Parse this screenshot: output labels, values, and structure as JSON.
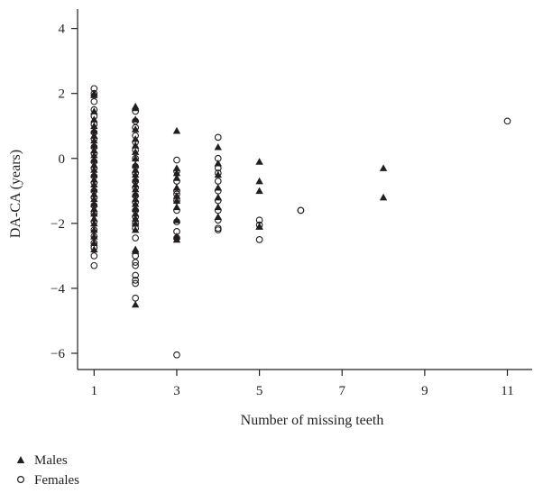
{
  "chart_data": {
    "type": "scatter",
    "title": "",
    "xlabel": "Number of missing teeth",
    "ylabel": "DA-CA (years)",
    "xlim": [
      0.6,
      11.6
    ],
    "ylim": [
      -6.5,
      4.6
    ],
    "xticks": [
      1,
      3,
      5,
      7,
      9,
      11
    ],
    "yticks": [
      -6,
      -4,
      -2,
      0,
      2,
      4
    ],
    "grid": false,
    "legend_position": "bottom-left",
    "series": [
      {
        "name": "Males",
        "marker": "filled-triangle",
        "points": [
          [
            1,
            2.0
          ],
          [
            1,
            1.95
          ],
          [
            1,
            1.45
          ],
          [
            1,
            1.2
          ],
          [
            1,
            1.0
          ],
          [
            1,
            0.85
          ],
          [
            1,
            0.7
          ],
          [
            1,
            0.55
          ],
          [
            1,
            0.4
          ],
          [
            1,
            0.25
          ],
          [
            1,
            0.1
          ],
          [
            1,
            -0.05
          ],
          [
            1,
            -0.2
          ],
          [
            1,
            -0.35
          ],
          [
            1,
            -0.5
          ],
          [
            1,
            -0.65
          ],
          [
            1,
            -0.8
          ],
          [
            1,
            -0.95
          ],
          [
            1,
            -1.1
          ],
          [
            1,
            -1.25
          ],
          [
            1,
            -1.4
          ],
          [
            1,
            -1.55
          ],
          [
            1,
            -1.7
          ],
          [
            1,
            -1.85
          ],
          [
            1,
            -2.0
          ],
          [
            1,
            -2.2
          ],
          [
            1,
            -2.4
          ],
          [
            1,
            -2.6
          ],
          [
            1,
            -2.8
          ],
          [
            2,
            1.6
          ],
          [
            2,
            1.55
          ],
          [
            2,
            1.2
          ],
          [
            2,
            0.9
          ],
          [
            2,
            0.6
          ],
          [
            2,
            0.4
          ],
          [
            2,
            0.2
          ],
          [
            2,
            0.0
          ],
          [
            2,
            -0.2
          ],
          [
            2,
            -0.35
          ],
          [
            2,
            -0.5
          ],
          [
            2,
            -0.65
          ],
          [
            2,
            -0.8
          ],
          [
            2,
            -0.95
          ],
          [
            2,
            -1.1
          ],
          [
            2,
            -1.25
          ],
          [
            2,
            -1.4
          ],
          [
            2,
            -1.55
          ],
          [
            2,
            -1.7
          ],
          [
            2,
            -1.85
          ],
          [
            2,
            -2.0
          ],
          [
            2,
            -2.2
          ],
          [
            2,
            -2.8
          ],
          [
            2,
            -2.85
          ],
          [
            2,
            -4.5
          ],
          [
            3,
            0.85
          ],
          [
            3,
            -0.3
          ],
          [
            3,
            -0.45
          ],
          [
            3,
            -0.6
          ],
          [
            3,
            -0.9
          ],
          [
            3,
            -1.15
          ],
          [
            3,
            -1.3
          ],
          [
            3,
            -1.5
          ],
          [
            3,
            -1.9
          ],
          [
            3,
            -2.4
          ],
          [
            3,
            -2.5
          ],
          [
            4,
            0.35
          ],
          [
            4,
            -0.15
          ],
          [
            4,
            -0.5
          ],
          [
            4,
            -0.9
          ],
          [
            4,
            -1.2
          ],
          [
            4,
            -1.5
          ],
          [
            4,
            -1.8
          ],
          [
            5,
            -0.1
          ],
          [
            5,
            -0.7
          ],
          [
            5,
            -1.0
          ],
          [
            5,
            -2.1
          ],
          [
            5,
            -2.1
          ],
          [
            8,
            -0.3
          ],
          [
            8,
            -1.2
          ]
        ]
      },
      {
        "name": "Females",
        "marker": "open-circle",
        "points": [
          [
            1,
            2.15
          ],
          [
            1,
            2.0
          ],
          [
            1,
            1.75
          ],
          [
            1,
            1.5
          ],
          [
            1,
            1.3
          ],
          [
            1,
            1.05
          ],
          [
            1,
            0.8
          ],
          [
            1,
            0.6
          ],
          [
            1,
            0.35
          ],
          [
            1,
            0.15
          ],
          [
            1,
            -0.1
          ],
          [
            1,
            -0.3
          ],
          [
            1,
            -0.55
          ],
          [
            1,
            -0.75
          ],
          [
            1,
            -1.0
          ],
          [
            1,
            -1.2
          ],
          [
            1,
            -1.45
          ],
          [
            1,
            -1.7
          ],
          [
            1,
            -1.95
          ],
          [
            1,
            -2.2
          ],
          [
            1,
            -2.4
          ],
          [
            1,
            -2.6
          ],
          [
            1,
            -2.75
          ],
          [
            1,
            -3.0
          ],
          [
            1,
            -3.3
          ],
          [
            2,
            1.45
          ],
          [
            2,
            1.15
          ],
          [
            2,
            0.95
          ],
          [
            2,
            0.7
          ],
          [
            2,
            0.5
          ],
          [
            2,
            0.25
          ],
          [
            2,
            0.0
          ],
          [
            2,
            -0.25
          ],
          [
            2,
            -0.45
          ],
          [
            2,
            -0.7
          ],
          [
            2,
            -0.9
          ],
          [
            2,
            -1.15
          ],
          [
            2,
            -1.35
          ],
          [
            2,
            -1.6
          ],
          [
            2,
            -1.8
          ],
          [
            2,
            -2.0
          ],
          [
            2,
            -2.15
          ],
          [
            2,
            -2.45
          ],
          [
            2,
            -3.0
          ],
          [
            2,
            -3.2
          ],
          [
            2,
            -3.3
          ],
          [
            2,
            -3.6
          ],
          [
            2,
            -3.75
          ],
          [
            2,
            -3.85
          ],
          [
            2,
            -4.3
          ],
          [
            3,
            -0.05
          ],
          [
            3,
            -0.4
          ],
          [
            3,
            -0.7
          ],
          [
            3,
            -1.0
          ],
          [
            3,
            -1.1
          ],
          [
            3,
            -1.3
          ],
          [
            3,
            -1.6
          ],
          [
            3,
            -1.95
          ],
          [
            3,
            -2.25
          ],
          [
            3,
            -2.45
          ],
          [
            3,
            -6.05
          ],
          [
            4,
            0.65
          ],
          [
            4,
            0.0
          ],
          [
            4,
            -0.3
          ],
          [
            4,
            -0.45
          ],
          [
            4,
            -0.7
          ],
          [
            4,
            -1.0
          ],
          [
            4,
            -1.3
          ],
          [
            4,
            -1.6
          ],
          [
            4,
            -1.9
          ],
          [
            4,
            -2.15
          ],
          [
            4,
            -2.2
          ],
          [
            5,
            -1.9
          ],
          [
            5,
            -2.05
          ],
          [
            5,
            -2.5
          ],
          [
            6,
            -1.6
          ],
          [
            6,
            -1.6
          ],
          [
            11,
            1.15
          ]
        ]
      }
    ]
  }
}
